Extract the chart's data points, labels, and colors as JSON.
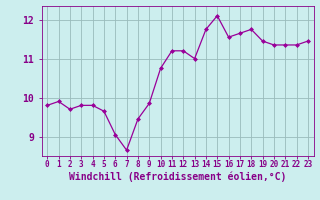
{
  "x": [
    0,
    1,
    2,
    3,
    4,
    5,
    6,
    7,
    8,
    9,
    10,
    11,
    12,
    13,
    14,
    15,
    16,
    17,
    18,
    19,
    20,
    21,
    22,
    23
  ],
  "y": [
    9.8,
    9.9,
    9.7,
    9.8,
    9.8,
    9.65,
    9.05,
    8.65,
    9.45,
    9.85,
    10.75,
    11.2,
    11.2,
    11.0,
    11.75,
    12.1,
    11.55,
    11.65,
    11.75,
    11.45,
    11.35,
    11.35,
    11.35,
    11.45
  ],
  "line_color": "#990099",
  "marker": "D",
  "marker_size": 2.0,
  "bg_color": "#cceeee",
  "grid_color": "#99bbbb",
  "xlabel": "Windchill (Refroidissement éolien,°C)",
  "xlabel_color": "#880088",
  "tick_color": "#880088",
  "ylim": [
    8.5,
    12.35
  ],
  "yticks": [
    9,
    10,
    11,
    12
  ],
  "xlim": [
    -0.5,
    23.5
  ],
  "label_fontsize": 7.0,
  "tick_fontsize": 7.0
}
